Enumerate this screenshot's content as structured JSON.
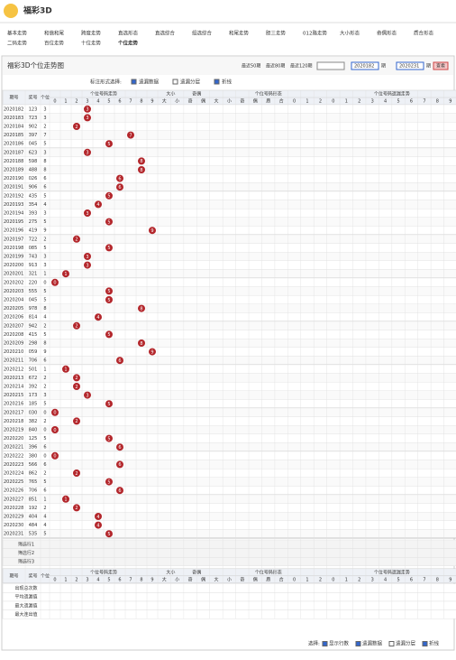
{
  "header": {
    "title": "福彩3D"
  },
  "nav": [
    "基本走势",
    "和值和尾",
    "跨度走势",
    "直选形态",
    "直选综合",
    "组选综合",
    "和尾走势",
    "胆三走势",
    "012路走势",
    "大小形态",
    "奇偶形态",
    "质合形态",
    "二码走势",
    "百位走势",
    "十位走势",
    "个位走势"
  ],
  "panel": {
    "title": "福彩3D个位走势图",
    "links": [
      "最近50期",
      "最近80期",
      "最近120期"
    ],
    "range_from": "2020182",
    "range_to": "2020231",
    "period_unit": "期",
    "button": "查看"
  },
  "options": {
    "label": "标注形式选择:",
    "items": [
      "遗漏数据",
      "遗漏分层",
      "折线"
    ]
  },
  "table": {
    "issue": "期号",
    "number": "奖号",
    "unit": "个位",
    "trend": "个位号码走势",
    "digits": [
      "0",
      "1",
      "2",
      "3",
      "4",
      "5",
      "6",
      "7",
      "8",
      "9"
    ],
    "groups": [
      {
        "title": "大小",
        "cols": [
          "大",
          "小"
        ]
      },
      {
        "title": "奇偶",
        "cols": [
          "奇",
          "偶"
        ]
      },
      {
        "title": "个位号码形态",
        "cols": [
          "大",
          "小",
          "奇",
          "偶",
          "质",
          "合",
          "0",
          "1",
          "2"
        ]
      },
      {
        "title": "个位号码遗漏走势",
        "cols": [
          "0",
          "1",
          "2",
          "3",
          "4",
          "5",
          "6",
          "7",
          "8",
          "9"
        ]
      }
    ],
    "rows": [
      [
        "2020182",
        "123",
        "3"
      ],
      [
        "2020183",
        "723",
        "3"
      ],
      [
        "2020184",
        "902",
        "2"
      ],
      [
        "2020185",
        "397",
        "7"
      ],
      [
        "2020186",
        "045",
        "5"
      ],
      [
        "2020187",
        "623",
        "3"
      ],
      [
        "2020188",
        "598",
        "8"
      ],
      [
        "2020189",
        "488",
        "8"
      ],
      [
        "2020190",
        "026",
        "6"
      ],
      [
        "2020191",
        "906",
        "6"
      ],
      [
        "2020192",
        "435",
        "5"
      ],
      [
        "2020193",
        "354",
        "4"
      ],
      [
        "2020194",
        "393",
        "3"
      ],
      [
        "2020195",
        "275",
        "5"
      ],
      [
        "2020196",
        "419",
        "9"
      ],
      [
        "2020197",
        "722",
        "2"
      ],
      [
        "2020198",
        "085",
        "5"
      ],
      [
        "2020199",
        "743",
        "3"
      ],
      [
        "2020200",
        "913",
        "3"
      ],
      [
        "2020201",
        "321",
        "1"
      ],
      [
        "2020202",
        "220",
        "0"
      ],
      [
        "2020203",
        "555",
        "5"
      ],
      [
        "2020204",
        "045",
        "5"
      ],
      [
        "2020205",
        "978",
        "8"
      ],
      [
        "2020206",
        "814",
        "4"
      ],
      [
        "2020207",
        "942",
        "2"
      ],
      [
        "2020208",
        "415",
        "5"
      ],
      [
        "2020209",
        "298",
        "8"
      ],
      [
        "2020210",
        "059",
        "9"
      ],
      [
        "2020211",
        "706",
        "6"
      ],
      [
        "2020212",
        "501",
        "1"
      ],
      [
        "2020213",
        "672",
        "2"
      ],
      [
        "2020214",
        "392",
        "2"
      ],
      [
        "2020215",
        "173",
        "3"
      ],
      [
        "2020216",
        "185",
        "5"
      ],
      [
        "2020217",
        "030",
        "0"
      ],
      [
        "2020218",
        "382",
        "2"
      ],
      [
        "2020219",
        "840",
        "0"
      ],
      [
        "2020220",
        "125",
        "5"
      ],
      [
        "2020221",
        "396",
        "6"
      ],
      [
        "2020222",
        "380",
        "0"
      ],
      [
        "2020223",
        "566",
        "6"
      ],
      [
        "2020224",
        "862",
        "2"
      ],
      [
        "2020225",
        "765",
        "5"
      ],
      [
        "2020226",
        "706",
        "6"
      ],
      [
        "2020227",
        "851",
        "1"
      ],
      [
        "2020228",
        "192",
        "2"
      ],
      [
        "2020229",
        "404",
        "4"
      ],
      [
        "2020230",
        "484",
        "4"
      ],
      [
        "2020231",
        "535",
        "5"
      ]
    ],
    "filters": [
      "筛选行1",
      "筛选行2",
      "筛选行3"
    ],
    "stats": [
      "出现总次数",
      "平均遗漏值",
      "最大遗漏值",
      "最大连出值"
    ]
  },
  "footer": {
    "label": "选择:",
    "items": [
      "显示行数",
      "遗漏数据",
      "遗漏分层",
      "折线"
    ]
  }
}
